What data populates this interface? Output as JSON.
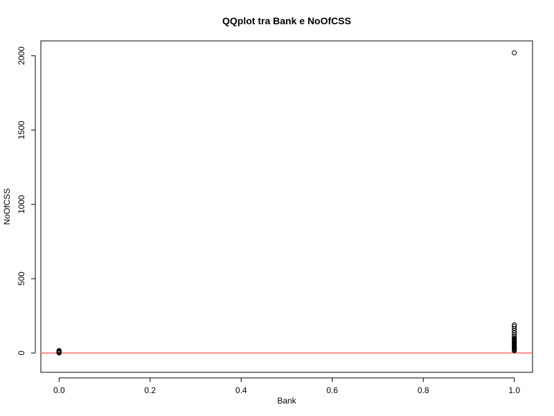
{
  "chart_data": {
    "type": "scatter",
    "title": "QQplot tra Bank e NoOfCSS",
    "xlabel": "Bank",
    "ylabel": "NoOfCSS",
    "xlim": [
      -0.04,
      1.04
    ],
    "ylim": [
      -130,
      2100
    ],
    "x_ticks": [
      0.0,
      0.2,
      0.4,
      0.6,
      0.8,
      1.0
    ],
    "x_tick_labels": [
      "0.0",
      "0.2",
      "0.4",
      "0.6",
      "0.8",
      "1.0"
    ],
    "y_ticks": [
      0,
      500,
      1000,
      1500,
      2000
    ],
    "y_tick_labels": [
      "0",
      "500",
      "1000",
      "1500",
      "2000"
    ],
    "grid": false,
    "marker": "open-circle",
    "reference_line": {
      "type": "horizontal",
      "y": 0,
      "color": "#ff6b6b"
    },
    "series": [
      {
        "x": [
          0,
          0,
          0,
          0,
          0,
          0,
          0,
          0,
          0,
          0,
          1,
          1,
          1,
          1,
          1,
          1,
          1,
          1,
          1,
          1,
          1,
          1,
          1,
          1,
          1,
          1,
          1,
          1,
          1,
          1,
          1,
          1,
          1,
          1,
          1,
          1
        ],
        "y": [
          0,
          2,
          4,
          6,
          8,
          10,
          12,
          14,
          15,
          17,
          15,
          20,
          25,
          30,
          35,
          40,
          45,
          50,
          55,
          60,
          65,
          70,
          75,
          80,
          85,
          90,
          95,
          100,
          110,
          120,
          135,
          150,
          165,
          180,
          190,
          2020
        ]
      }
    ]
  }
}
